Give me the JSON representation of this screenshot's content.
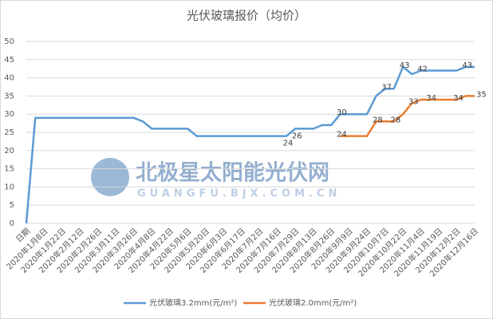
{
  "chart_data": {
    "type": "line",
    "title": "光伏玻璃报价（均价）",
    "watermark": {
      "title": "北极星太阳能光伏网",
      "url": "GUANGFU.BJX.COM.CN"
    },
    "categories": [
      "日期",
      null,
      "2020年1月8日",
      null,
      "2020年1月22日",
      null,
      "2020年2月12日",
      null,
      "2020年2月26日",
      null,
      "2020年3月11日",
      null,
      "2020年3月26日",
      null,
      "2020年4月8日",
      null,
      "2020年4月22日",
      null,
      "2020年5月6日",
      null,
      "2020年5月20日",
      null,
      "2020年6月3日",
      null,
      "2020年6月17日",
      null,
      "2020年7月2日",
      null,
      "2020年7月16日",
      null,
      "2020年7月29日",
      null,
      "2020年8月13日",
      null,
      "2020年8月26日",
      null,
      "2020年9月9日",
      null,
      "2020年9月24日",
      null,
      "2020年10月7日",
      null,
      "2020年10月22日",
      null,
      "2020年11月4日",
      null,
      "2020年11月19日",
      null,
      "2020年12月2日",
      null,
      "2020年12月16日"
    ],
    "series": [
      {
        "name": "光伏玻璃3.2mm(元/m²)",
        "color": "#5b9bd5",
        "values": [
          0,
          29,
          29,
          29,
          29,
          29,
          29,
          29,
          29,
          29,
          29,
          29,
          29,
          28,
          26,
          26,
          26,
          26,
          26,
          24,
          24,
          24,
          24,
          24,
          24,
          24,
          24,
          24,
          24,
          24,
          26,
          26,
          26,
          27,
          27,
          30,
          30,
          30,
          30,
          35,
          37,
          37,
          43,
          41,
          42,
          42,
          42,
          42,
          42,
          43,
          43
        ],
        "value_labels": [
          null,
          null,
          null,
          null,
          null,
          null,
          null,
          null,
          null,
          null,
          null,
          null,
          null,
          null,
          null,
          null,
          null,
          null,
          null,
          null,
          null,
          null,
          null,
          null,
          null,
          null,
          null,
          null,
          null,
          "24",
          "26",
          null,
          null,
          null,
          null,
          "30",
          null,
          null,
          null,
          null,
          "37",
          null,
          "43",
          null,
          "42",
          null,
          null,
          null,
          null,
          "43",
          null
        ]
      },
      {
        "name": "光伏玻璃2.0mm(元/m²)",
        "color": "#ed7d31",
        "values": [
          null,
          null,
          null,
          null,
          null,
          null,
          null,
          null,
          null,
          null,
          null,
          null,
          null,
          null,
          null,
          null,
          null,
          null,
          null,
          null,
          null,
          null,
          null,
          null,
          null,
          null,
          null,
          null,
          null,
          null,
          null,
          null,
          null,
          null,
          null,
          24,
          24,
          24,
          24,
          28,
          28,
          28,
          30,
          33,
          34,
          34,
          34,
          34,
          34,
          35,
          35
        ],
        "value_labels": [
          null,
          null,
          null,
          null,
          null,
          null,
          null,
          null,
          null,
          null,
          null,
          null,
          null,
          null,
          null,
          null,
          null,
          null,
          null,
          null,
          null,
          null,
          null,
          null,
          null,
          null,
          null,
          null,
          null,
          null,
          null,
          null,
          null,
          null,
          null,
          "24",
          null,
          null,
          null,
          "28",
          null,
          "28",
          null,
          "33",
          null,
          "34",
          null,
          null,
          "34",
          null,
          "35"
        ]
      }
    ],
    "ylim": [
      0,
      50
    ],
    "yticks": [
      0,
      5,
      10,
      15,
      20,
      25,
      30,
      35,
      40,
      45,
      50
    ],
    "grid": true,
    "legend": "bottom"
  }
}
